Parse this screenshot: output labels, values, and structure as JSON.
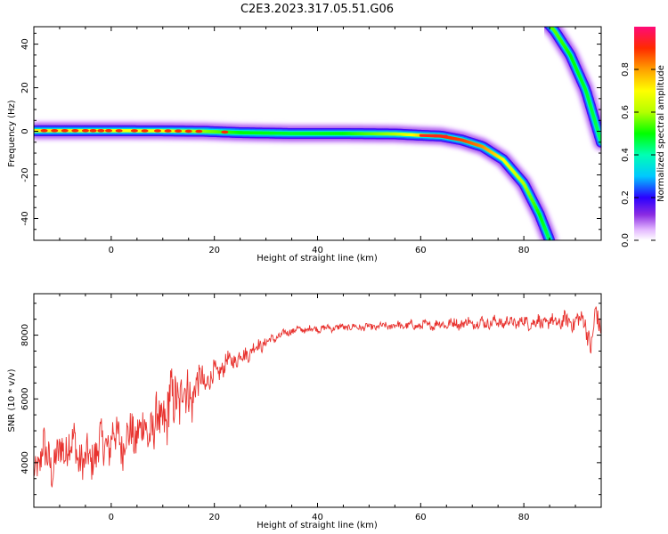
{
  "title": "C2E3.2023.317.05.51.G06",
  "colors": {
    "trace": "#e8322e",
    "axis": "#000000",
    "background": "#ffffff"
  },
  "chart_data": [
    {
      "type": "heatmap",
      "panel": "spectrogram",
      "xlabel": "Height of straight line (km)",
      "ylabel": "Frequency (Hz)",
      "xlim": [
        -15,
        95
      ],
      "ylim": [
        -50,
        48
      ],
      "xticks": [
        0,
        20,
        40,
        60,
        80
      ],
      "yticks": [
        -40,
        -20,
        0,
        20,
        40
      ],
      "main_trace": [
        {
          "x": -15,
          "f": 0.3,
          "a": 0.72
        },
        {
          "x": 0,
          "f": 0.3,
          "a": 0.7
        },
        {
          "x": 10,
          "f": 0.2,
          "a": 0.7
        },
        {
          "x": 18,
          "f": 0.0,
          "a": 0.58
        },
        {
          "x": 25,
          "f": -0.6,
          "a": 0.5
        },
        {
          "x": 35,
          "f": -1.0,
          "a": 0.48
        },
        {
          "x": 45,
          "f": -1.0,
          "a": 0.5
        },
        {
          "x": 55,
          "f": -1.2,
          "a": 0.6
        },
        {
          "x": 60,
          "f": -1.8,
          "a": 0.75
        },
        {
          "x": 64,
          "f": -2.2,
          "a": 0.9
        },
        {
          "x": 68,
          "f": -4.0,
          "a": 0.88
        },
        {
          "x": 72,
          "f": -7.0,
          "a": 0.82
        },
        {
          "x": 76,
          "f": -13.0,
          "a": 0.7
        },
        {
          "x": 80,
          "f": -24.0,
          "a": 0.6
        },
        {
          "x": 83,
          "f": -38.0,
          "a": 0.5
        },
        {
          "x": 85,
          "f": -50.0,
          "a": 0.45
        }
      ],
      "mirror_trace": [
        {
          "x": 84.5,
          "f": 50.0,
          "a": 0.55
        },
        {
          "x": 86,
          "f": 46.0,
          "a": 0.55
        },
        {
          "x": 89,
          "f": 35.0,
          "a": 0.5
        },
        {
          "x": 92,
          "f": 19.0,
          "a": 0.48
        },
        {
          "x": 95,
          "f": -5.0,
          "a": 0.45
        }
      ],
      "peak_spots_x": [
        -13,
        -11,
        -9,
        -7,
        -5,
        -3.5,
        -2,
        -0.5,
        1.5,
        4.5,
        6.5,
        9,
        11,
        13,
        15,
        17,
        22,
        63
      ],
      "colorbar": {
        "label": "Normalized spectral amplitude",
        "range": [
          0.0,
          1.0
        ],
        "ticks": [
          0.0,
          0.2,
          0.4,
          0.6,
          0.8
        ],
        "tick_labels": [
          "0.0",
          "0.2",
          "0.4",
          "0.6",
          "0.8"
        ]
      }
    },
    {
      "type": "line",
      "panel": "snr",
      "xlabel": "Height of straight line (km)",
      "ylabel": "SNR (10 * v/v)",
      "xlim": [
        -15,
        95
      ],
      "ylim": [
        2600,
        9300
      ],
      "xticks": [
        0,
        20,
        40,
        60,
        80
      ],
      "yticks": [
        4000,
        6000,
        8000
      ],
      "series": [
        {
          "name": "SNR",
          "x": [
            -15,
            -13,
            -11,
            -9,
            -7,
            -5,
            -3,
            -1,
            1,
            3,
            5,
            7,
            9,
            11,
            13,
            15,
            17,
            19,
            21,
            23,
            25,
            27,
            29,
            31,
            33,
            35,
            40,
            45,
            50,
            55,
            60,
            65,
            70,
            75,
            80,
            85,
            90,
            92,
            93,
            94,
            95
          ],
          "values": [
            3800,
            4300,
            3900,
            4600,
            4500,
            3900,
            4400,
            4600,
            4800,
            4700,
            5000,
            5000,
            5200,
            5600,
            6200,
            6100,
            6500,
            6600,
            6900,
            7200,
            7300,
            7500,
            7700,
            7850,
            8000,
            8150,
            8200,
            8250,
            8250,
            8300,
            8300,
            8350,
            8380,
            8400,
            8400,
            8400,
            8450,
            8450,
            7500,
            8700,
            8300
          ],
          "noise": [
            500,
            900,
            800,
            900,
            850,
            800,
            900,
            800,
            900,
            900,
            900,
            900,
            1000,
            1300,
            1200,
            1100,
            700,
            500,
            400,
            350,
            330,
            300,
            250,
            170,
            150,
            150,
            130,
            130,
            130,
            150,
            170,
            200,
            220,
            220,
            240,
            280,
            350,
            400,
            500,
            500,
            400
          ]
        }
      ]
    }
  ]
}
